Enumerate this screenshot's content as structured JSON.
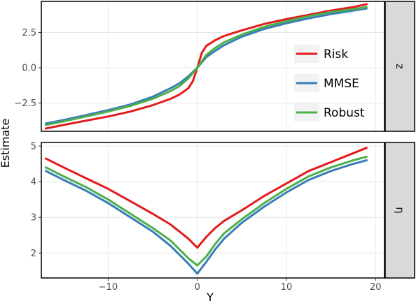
{
  "chart_data": {
    "type": "line",
    "ylabel": "Estimate",
    "xlabel": "Y",
    "x_ticks": [
      -10,
      0,
      10,
      20
    ],
    "xlim": [
      -17.5,
      21
    ],
    "legend": {
      "placement": "inside top panel, right",
      "entries": [
        "Risk",
        "MMSE",
        "Robust"
      ]
    },
    "series_colors": {
      "Risk": "#e41a1c",
      "MMSE": "#377eb8",
      "Robust": "#4daf4a"
    },
    "panels": [
      {
        "strip_label": "z",
        "ylim": [
          -4.5,
          4.7
        ],
        "y_ticks": [
          -2.5,
          0.0,
          2.5
        ],
        "y_tick_labels": [
          "−2.5",
          "0.0",
          "2.5"
        ],
        "series": [
          {
            "name": "Risk",
            "x": [
              -17,
              -15,
              -12.5,
              -10,
              -7.5,
              -5,
              -3,
              -2,
              -1,
              -0.5,
              0,
              0.5,
              1,
              2,
              3,
              5,
              7.5,
              10,
              12.5,
              15,
              17.5,
              19
            ],
            "y": [
              -4.3,
              -4.05,
              -3.75,
              -3.45,
              -3.1,
              -2.65,
              -2.2,
              -1.9,
              -1.45,
              -0.95,
              0.0,
              1.05,
              1.55,
              1.95,
              2.25,
              2.65,
              3.1,
              3.45,
              3.75,
              4.05,
              4.3,
              4.5
            ]
          },
          {
            "name": "MMSE",
            "x": [
              -17,
              -15,
              -12.5,
              -10,
              -7.5,
              -5,
              -3,
              -2,
              -1,
              0,
              1,
              2,
              3,
              5,
              7.5,
              10,
              12.5,
              15,
              17.5,
              19
            ],
            "y": [
              -3.95,
              -3.7,
              -3.35,
              -3.0,
              -2.6,
              -2.05,
              -1.45,
              -1.1,
              -0.6,
              0.0,
              0.75,
              1.2,
              1.6,
              2.2,
              2.75,
              3.15,
              3.5,
              3.8,
              4.05,
              4.2
            ]
          },
          {
            "name": "Robust",
            "x": [
              -17,
              -15,
              -12.5,
              -10,
              -7.5,
              -5,
              -3,
              -2,
              -1,
              0,
              1,
              2,
              3,
              5,
              7.5,
              10,
              12.5,
              15,
              17.5,
              19
            ],
            "y": [
              -4.05,
              -3.8,
              -3.45,
              -3.1,
              -2.7,
              -2.2,
              -1.65,
              -1.3,
              -0.75,
              0.0,
              0.9,
              1.4,
              1.8,
              2.35,
              2.9,
              3.3,
              3.65,
              3.95,
              4.15,
              4.3
            ]
          }
        ]
      },
      {
        "strip_label": "η",
        "ylim": [
          1.3,
          5.1
        ],
        "y_ticks": [
          2,
          3,
          4,
          5
        ],
        "y_tick_labels": [
          "2",
          "3",
          "4",
          "5"
        ],
        "series": [
          {
            "name": "Risk",
            "x": [
              -17,
              -15,
              -12.5,
              -10,
              -7.5,
              -5,
              -3,
              -2,
              -1,
              0,
              1,
              2,
              3,
              5,
              7.5,
              10,
              12.5,
              15,
              17.5,
              19
            ],
            "y": [
              4.65,
              4.4,
              4.1,
              3.8,
              3.45,
              3.1,
              2.8,
              2.6,
              2.4,
              2.15,
              2.45,
              2.7,
              2.9,
              3.2,
              3.6,
              3.95,
              4.3,
              4.55,
              4.8,
              4.95
            ]
          },
          {
            "name": "MMSE",
            "x": [
              -17,
              -15,
              -12.5,
              -10,
              -7.5,
              -5,
              -3,
              -2,
              -1,
              0,
              1,
              2,
              3,
              5,
              7.5,
              10,
              12.5,
              15,
              17.5,
              19
            ],
            "y": [
              4.3,
              4.05,
              3.75,
              3.4,
              3.0,
              2.6,
              2.2,
              1.95,
              1.7,
              1.42,
              1.75,
              2.1,
              2.4,
              2.85,
              3.3,
              3.7,
              4.05,
              4.3,
              4.5,
              4.6
            ]
          },
          {
            "name": "Robust",
            "x": [
              -17,
              -15,
              -12.5,
              -10,
              -7.5,
              -5,
              -3,
              -2,
              -1,
              0,
              1,
              2,
              3,
              5,
              7.5,
              10,
              12.5,
              15,
              17.5,
              19
            ],
            "y": [
              4.4,
              4.15,
              3.85,
              3.5,
              3.1,
              2.7,
              2.35,
              2.1,
              1.85,
              1.65,
              1.9,
              2.25,
              2.55,
              2.95,
              3.4,
              3.8,
              4.15,
              4.4,
              4.6,
              4.7
            ]
          }
        ]
      }
    ]
  }
}
